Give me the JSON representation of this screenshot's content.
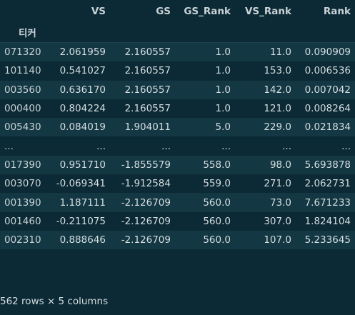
{
  "dataframe": {
    "columns": [
      "VS",
      "GS",
      "GS_Rank",
      "VS_Rank",
      "Rank"
    ],
    "index_name": "티커",
    "rows": [
      {
        "index": "071320",
        "values": [
          "2.061959",
          "2.160557",
          "1.0",
          "11.0",
          "0.090909"
        ]
      },
      {
        "index": "101140",
        "values": [
          "0.541027",
          "2.160557",
          "1.0",
          "153.0",
          "0.006536"
        ]
      },
      {
        "index": "003560",
        "values": [
          "0.636170",
          "2.160557",
          "1.0",
          "142.0",
          "0.007042"
        ]
      },
      {
        "index": "000400",
        "values": [
          "0.804224",
          "2.160557",
          "1.0",
          "121.0",
          "0.008264"
        ]
      },
      {
        "index": "005430",
        "values": [
          "0.084019",
          "1.904011",
          "5.0",
          "229.0",
          "0.021834"
        ]
      },
      {
        "index": "...",
        "values": [
          "...",
          "...",
          "...",
          "...",
          "..."
        ]
      },
      {
        "index": "017390",
        "values": [
          "0.951710",
          "-1.855579",
          "558.0",
          "98.0",
          "5.693878"
        ]
      },
      {
        "index": "003070",
        "values": [
          "-0.069341",
          "-1.912584",
          "559.0",
          "271.0",
          "2.062731"
        ]
      },
      {
        "index": "001390",
        "values": [
          "1.187111",
          "-2.126709",
          "560.0",
          "73.0",
          "7.671233"
        ]
      },
      {
        "index": "001460",
        "values": [
          "-0.211075",
          "-2.126709",
          "560.0",
          "307.0",
          "1.824104"
        ]
      },
      {
        "index": "002310",
        "values": [
          "0.888646",
          "-2.126709",
          "560.0",
          "107.0",
          "5.233645"
        ]
      }
    ],
    "summary": "562 rows × 5 columns"
  },
  "colors": {
    "background": "#0b2a35",
    "row_stripe": "#133843",
    "text": "#d6dde0"
  }
}
